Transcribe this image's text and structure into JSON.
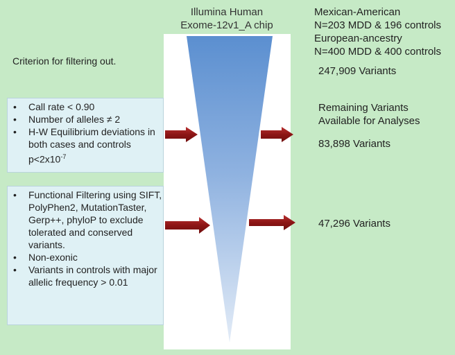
{
  "chip": {
    "title_line1": "Illumina Human",
    "title_line2": "Exome-12v1_A chip"
  },
  "populations": {
    "line1": "Mexican-American",
    "line2": "N=203 MDD & 196 controls",
    "line3": "European-ancestry",
    "line4": "N=400 MDD & 400 controls"
  },
  "criterion_label": "Criterion for filtering out.",
  "variants_initial": "247,909 Variants",
  "remaining_label_line1": "Remaining Variants",
  "remaining_label_line2": "Available for Analyses",
  "variants_after_qc": "83,898 Variants",
  "variants_after_functional": "47,296 Variants",
  "filter_box_1": {
    "items": [
      "Call rate < 0.90",
      "Number of alleles ≠ 2",
      "H-W Equilibrium deviations in both cases and controls p<2x10"
    ],
    "exponent": "-7"
  },
  "filter_box_2": {
    "items": [
      "Functional Filtering using SIFT, PolyPhen2, MutationTaster, Gerp++, phyloP to exclude tolerated and conserved variants.",
      "Non-exonic",
      "Variants in controls with major allelic frequency > 0.01"
    ]
  },
  "colors": {
    "background": "#c6eac6",
    "funnel_top": "#5b8fd0",
    "funnel_bottom": "#dbe7f5",
    "arrow": "#9b1b1b",
    "box_fill": "#dff1f5"
  }
}
